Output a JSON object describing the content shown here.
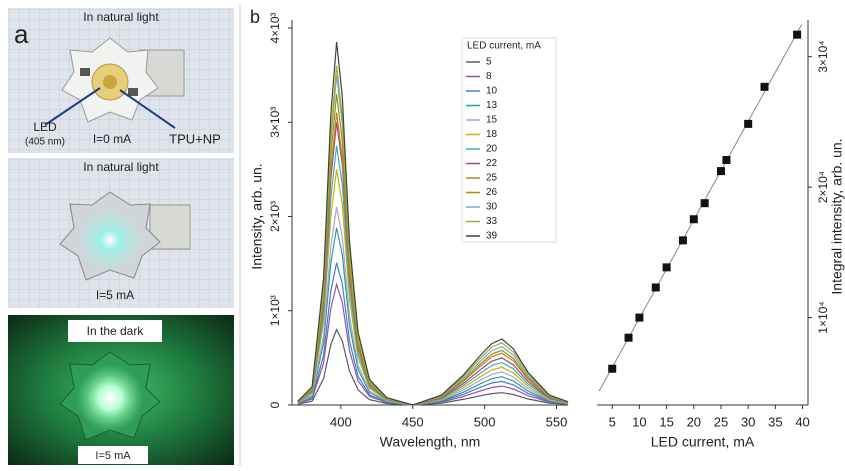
{
  "panel_a": {
    "label": "a",
    "photo_1": {
      "caption": "In natural light",
      "led": "LED",
      "led_wavelength": "(405 nm)",
      "current": "I=0 mA",
      "coating": "TPU+NP"
    },
    "photo_2": {
      "caption": "In natural light",
      "current": "I=5 mA"
    },
    "photo_3": {
      "caption": "In the dark",
      "current": "I=5 mA"
    }
  },
  "chart_data": [
    {
      "type": "line",
      "panel_label": "b",
      "x_label": "Wavelength, nm",
      "y_label": "Intensity, arb. un.",
      "legend_title": "LED current, mA",
      "xlim": [
        366,
        558
      ],
      "xticks": [
        400,
        450,
        500,
        550
      ],
      "ylim": [
        0,
        4000
      ],
      "yticks": [
        0,
        {
          "value": 1000,
          "label": "1×10³"
        },
        {
          "value": 2000,
          "label": "2×10³"
        },
        {
          "value": 3000,
          "label": "3×10³"
        },
        {
          "value": 4000,
          "label": "4×10³"
        }
      ],
      "x": [
        370,
        380,
        388,
        393,
        397,
        401,
        406,
        412,
        420,
        432,
        450,
        470,
        485,
        497,
        505,
        512,
        520,
        530,
        545,
        558
      ],
      "series": [
        {
          "name": "5",
          "color": "#5a5a5a",
          "values": [
            8,
            40,
            280,
            640,
            800,
            680,
            360,
            160,
            56,
            16,
            0,
            20,
            59,
            98,
            121,
            130,
            111,
            65,
            20,
            7
          ]
        },
        {
          "name": "8",
          "color": "#9b4fa8",
          "values": [
            13,
            64,
            448,
            1024,
            1280,
            1088,
            576,
            256,
            90,
            26,
            0,
            30,
            90,
            150,
            186,
            200,
            170,
            100,
            30,
            10
          ]
        },
        {
          "name": "10",
          "color": "#3d7fc9",
          "values": [
            15,
            76,
            529,
            1208,
            1510,
            1284,
            680,
            302,
            106,
            30,
            0,
            38,
            113,
            188,
            233,
            250,
            213,
            125,
            38,
            13
          ]
        },
        {
          "name": "13",
          "color": "#2a9d9d",
          "values": [
            19,
            94,
            658,
            1504,
            1880,
            1598,
            846,
            376,
            132,
            38,
            0,
            45,
            135,
            225,
            279,
            300,
            255,
            150,
            45,
            15
          ]
        },
        {
          "name": "15",
          "color": "#b39ddb",
          "values": [
            21,
            105,
            735,
            1680,
            2100,
            1785,
            945,
            420,
            147,
            42,
            0,
            53,
            158,
            263,
            326,
            350,
            298,
            175,
            53,
            18
          ]
        },
        {
          "name": "18",
          "color": "#c8b400",
          "values": [
            25,
            125,
            875,
            2000,
            2500,
            2125,
            1125,
            500,
            175,
            50,
            0,
            60,
            180,
            300,
            372,
            400,
            340,
            200,
            60,
            20
          ]
        },
        {
          "name": "20",
          "color": "#30b0c0",
          "values": [
            28,
            138,
            963,
            2200,
            2750,
            2338,
            1238,
            550,
            193,
            55,
            0,
            68,
            203,
            338,
            419,
            450,
            383,
            225,
            68,
            23
          ]
        },
        {
          "name": "22",
          "color": "#b04080",
          "values": [
            30,
            150,
            1050,
            2400,
            3000,
            2550,
            1350,
            600,
            210,
            60,
            0,
            75,
            225,
            375,
            465,
            500,
            425,
            250,
            75,
            25
          ]
        },
        {
          "name": "25",
          "color": "#c08020",
          "values": [
            31,
            155,
            1085,
            2480,
            3100,
            2635,
            1395,
            620,
            217,
            62,
            0,
            83,
            248,
            413,
            512,
            550,
            468,
            275,
            83,
            28
          ]
        },
        {
          "name": "26",
          "color": "#a09000",
          "values": [
            33,
            165,
            1155,
            2640,
            3300,
            2805,
            1485,
            660,
            231,
            66,
            0,
            87,
            261,
            435,
            539,
            580,
            493,
            290,
            87,
            29
          ]
        },
        {
          "name": "30",
          "color": "#6fa8dc",
          "values": [
            35,
            175,
            1225,
            2800,
            3500,
            2975,
            1575,
            700,
            245,
            70,
            0,
            93,
            279,
            465,
            577,
            620,
            527,
            310,
            93,
            31
          ]
        },
        {
          "name": "33",
          "color": "#a0b020",
          "values": [
            36,
            180,
            1260,
            2880,
            3600,
            3060,
            1620,
            720,
            252,
            72,
            0,
            99,
            297,
            495,
            614,
            660,
            561,
            330,
            99,
            33
          ]
        },
        {
          "name": "39",
          "color": "#404040",
          "values": [
            39,
            193,
            1348,
            3080,
            3850,
            3273,
            1733,
            770,
            270,
            77,
            0,
            105,
            315,
            525,
            651,
            700,
            595,
            350,
            105,
            35
          ]
        }
      ]
    },
    {
      "type": "scatter",
      "x_label": "LED current, mA",
      "y_label": "Integral intensity, arb. un.",
      "color": "#111111",
      "trendline": true,
      "xlim": [
        2.2,
        41
      ],
      "xticks": [
        5,
        10,
        15,
        20,
        25,
        30,
        35,
        40
      ],
      "ylim": [
        3300,
        32200
      ],
      "yticks": [
        {
          "value": 10000,
          "label": "1×10⁴"
        },
        {
          "value": 20000,
          "label": "2×10⁴"
        },
        {
          "value": 30000,
          "label": "3×10⁴"
        }
      ],
      "x": [
        5,
        8,
        10,
        13,
        15,
        18,
        20,
        22,
        25,
        26,
        30,
        33,
        39
      ],
      "values": [
        6080,
        8460,
        10000,
        12310,
        13850,
        15920,
        17540,
        18770,
        21230,
        22080,
        24850,
        27690,
        31690
      ]
    }
  ]
}
